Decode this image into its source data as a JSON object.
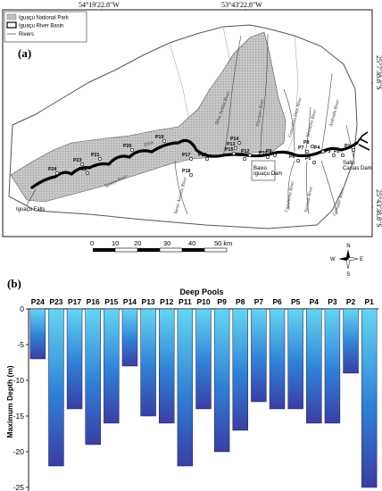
{
  "map": {
    "panel_label": "(a)",
    "coords": {
      "top_left": "54°19′22.8″W",
      "top_right": "53°43′22.8″W",
      "right_top": "25°7′38.8″S",
      "right_bottom": "25°43′38.8″S"
    },
    "legend": [
      {
        "label": "Iguaçu National Park",
        "swatch": "park-fill"
      },
      {
        "label": "Iguaçu River Basin",
        "swatch": "basin-outline"
      },
      {
        "label": "Rivers",
        "swatch": "river-line"
      }
    ],
    "rivers": [
      {
        "label": "Silva Jardim River"
      },
      {
        "label": "Floriano River"
      },
      {
        "label": "Gonçalves Dias River"
      },
      {
        "label": "Andrada River"
      },
      {
        "label": "Monteiro River"
      },
      {
        "label": "Iguaçu River"
      },
      {
        "label": "Elias"
      },
      {
        "label": "Santo Antonio River"
      },
      {
        "label": "Cotegipe River"
      },
      {
        "label": "Capanema River"
      },
      {
        "label": "Sarandi River"
      }
    ],
    "places": {
      "falls": "Iguaçu Falls",
      "baixo_dam": "Baixo Iguaçu Dam",
      "salto_dam": "Salto Caxias Dam"
    },
    "points": [
      "P24",
      "P23",
      "P22",
      "P21",
      "P20",
      "P19",
      "P18",
      "P17",
      "P16",
      "P15",
      "P14",
      "P13",
      "P12",
      "P11",
      "P10",
      "P9",
      "P8",
      "P7",
      "P6",
      "P5",
      "P4",
      "P3",
      "P2",
      "P1"
    ],
    "scale": {
      "ticks": [
        "0",
        "10",
        "20",
        "30",
        "40",
        "50 km"
      ]
    },
    "compass": {
      "n": "N",
      "s": "S",
      "e": "E",
      "w": "W"
    }
  },
  "chart": {
    "panel_label": "(b)"
  },
  "chart_data": {
    "type": "bar",
    "title": "Deep Pools",
    "ylabel": "Maximum Depth (m)",
    "xlabel": "",
    "ylim": [
      -27,
      0
    ],
    "yticks": [
      0,
      -5,
      -10,
      -15,
      -20,
      -25
    ],
    "categories": [
      "P24",
      "P23",
      "P17",
      "P16",
      "P15",
      "P14",
      "P13",
      "P12",
      "P11",
      "P10",
      "P9",
      "P8",
      "P7",
      "P6",
      "P5",
      "P4",
      "P3",
      "P2",
      "P1"
    ],
    "values": [
      -7,
      -22,
      -14,
      -19,
      -16,
      -8,
      -15,
      -16,
      -22,
      -14,
      -20,
      -17,
      -13,
      -14,
      -14,
      -16,
      -16,
      -9,
      -25
    ],
    "colors": {
      "top": "#5fd3f0",
      "bottom": "#3a40a6",
      "border": "#1a1a5a"
    }
  }
}
